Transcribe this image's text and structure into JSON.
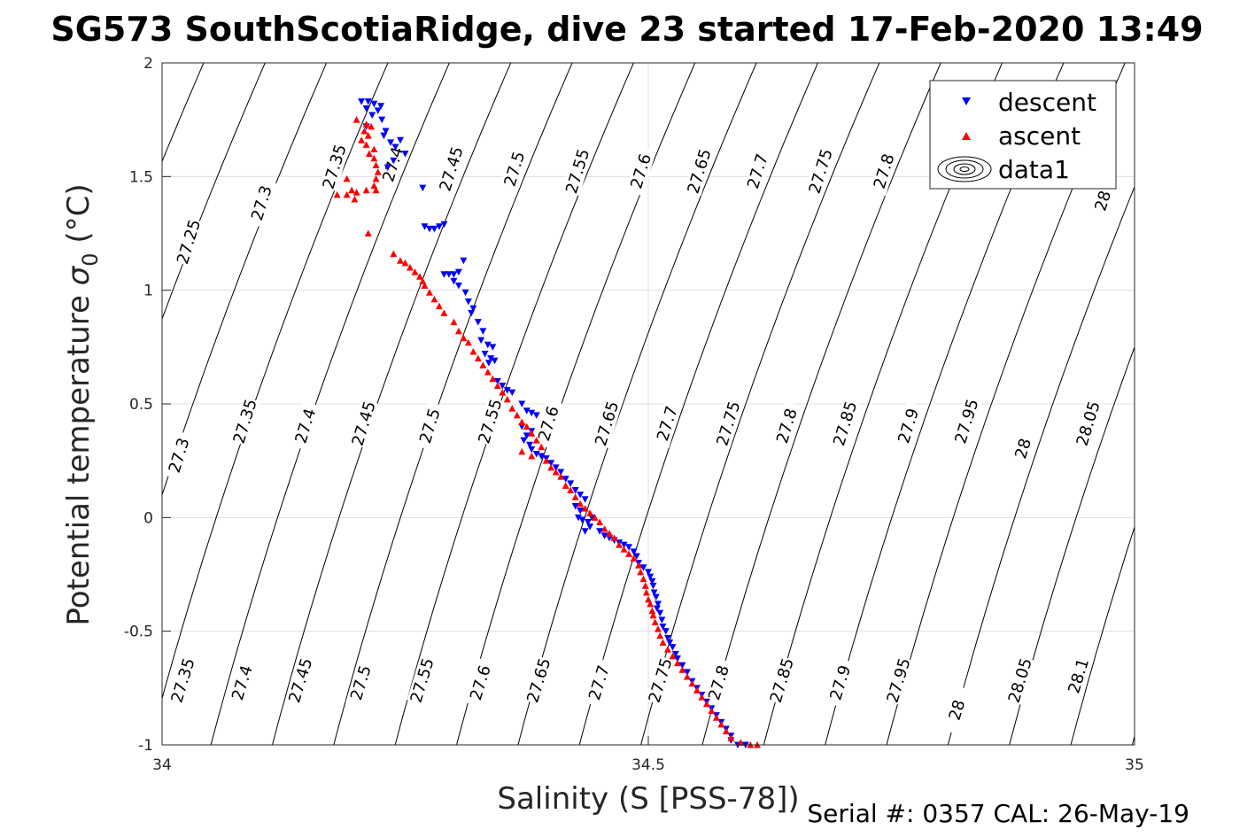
{
  "title": "SG573 SouthScotiaRidge, dive 23 started 17-Feb-2020 13:49",
  "footer": "Serial #: 0357  CAL: 26-May-19",
  "colors": {
    "descent": "#0000ff",
    "ascent": "#ff0000",
    "contour": "#000000",
    "grid": "#dfdfdf"
  },
  "chart_data": {
    "type": "scatter",
    "xlabel": "Salinity (S [PSS-78])",
    "ylabel_main": "Potential temperature ",
    "ylabel_sigma": "σ",
    "ylabel_sub": "0",
    "ylabel_unit": " (°C)",
    "xlim": [
      34,
      35
    ],
    "ylim": [
      -1,
      2
    ],
    "xticks": [
      34,
      34.5,
      35
    ],
    "xtick_labels": [
      "34",
      "34.5",
      "35"
    ],
    "yticks": [
      -1,
      -0.5,
      0,
      0.5,
      1,
      1.5,
      2
    ],
    "ytick_labels": [
      "-1",
      "-0.5",
      "0",
      "0.5",
      "1",
      "1.5",
      "2"
    ],
    "grid": true,
    "legend_position": "top-right",
    "legend": [
      "descent",
      "ascent",
      "data1"
    ],
    "contour_levels": [
      27.25,
      27.3,
      27.35,
      27.4,
      27.45,
      27.5,
      27.55,
      27.6,
      27.65,
      27.7,
      27.75,
      27.8,
      27.85,
      27.9,
      27.95,
      28,
      28.05,
      28.1
    ],
    "contour_labels": [
      {
        "text": "27.25",
        "s": 34.03,
        "t": 1.21
      },
      {
        "text": "27.3",
        "s": 34.105,
        "t": 1.38
      },
      {
        "text": "27.35",
        "s": 34.18,
        "t": 1.54
      },
      {
        "text": "27.4",
        "s": 34.24,
        "t": 1.55
      },
      {
        "text": "27.45",
        "s": 34.3,
        "t": 1.53
      },
      {
        "text": "27.5",
        "s": 34.365,
        "t": 1.53
      },
      {
        "text": "27.55",
        "s": 34.43,
        "t": 1.52
      },
      {
        "text": "27.6",
        "s": 34.495,
        "t": 1.52
      },
      {
        "text": "27.65",
        "s": 34.555,
        "t": 1.52
      },
      {
        "text": "27.7",
        "s": 34.615,
        "t": 1.52
      },
      {
        "text": "27.75",
        "s": 34.68,
        "t": 1.52
      },
      {
        "text": "27.8",
        "s": 34.745,
        "t": 1.52
      },
      {
        "text": "28",
        "s": 34.97,
        "t": 1.39
      },
      {
        "text": "27.3",
        "s": 34.02,
        "t": 0.27
      },
      {
        "text": "27.35",
        "s": 34.088,
        "t": 0.42
      },
      {
        "text": "27.4",
        "s": 34.15,
        "t": 0.4
      },
      {
        "text": "27.45",
        "s": 34.21,
        "t": 0.41
      },
      {
        "text": "27.5",
        "s": 34.278,
        "t": 0.4
      },
      {
        "text": "27.55",
        "s": 34.34,
        "t": 0.42
      },
      {
        "text": "27.6",
        "s": 34.4,
        "t": 0.41
      },
      {
        "text": "27.65",
        "s": 34.46,
        "t": 0.41
      },
      {
        "text": "27.7",
        "s": 34.522,
        "t": 0.41
      },
      {
        "text": "27.75",
        "s": 34.585,
        "t": 0.41
      },
      {
        "text": "27.8",
        "s": 34.645,
        "t": 0.4
      },
      {
        "text": "27.85",
        "s": 34.705,
        "t": 0.41
      },
      {
        "text": "27.9",
        "s": 34.77,
        "t": 0.4
      },
      {
        "text": "27.95",
        "s": 34.83,
        "t": 0.42
      },
      {
        "text": "28",
        "s": 34.888,
        "t": 0.3
      },
      {
        "text": "28.05",
        "s": 34.955,
        "t": 0.41
      },
      {
        "text": "27.35",
        "s": 34.024,
        "t": -0.72
      },
      {
        "text": "27.4",
        "s": 34.085,
        "t": -0.73
      },
      {
        "text": "27.45",
        "s": 34.145,
        "t": -0.72
      },
      {
        "text": "27.5",
        "s": 34.207,
        "t": -0.73
      },
      {
        "text": "27.55",
        "s": 34.27,
        "t": -0.72
      },
      {
        "text": "27.6",
        "s": 34.33,
        "t": -0.73
      },
      {
        "text": "27.65",
        "s": 34.39,
        "t": -0.72
      },
      {
        "text": "27.7",
        "s": 34.452,
        "t": -0.73
      },
      {
        "text": "27.75",
        "s": 34.515,
        "t": -0.72
      },
      {
        "text": "27.8",
        "s": 34.575,
        "t": -0.73
      },
      {
        "text": "27.85",
        "s": 34.64,
        "t": -0.72
      },
      {
        "text": "27.9",
        "s": 34.7,
        "t": -0.73
      },
      {
        "text": "27.95",
        "s": 34.76,
        "t": -0.72
      },
      {
        "text": "28",
        "s": 34.82,
        "t": -0.85
      },
      {
        "text": "28.05",
        "s": 34.885,
        "t": -0.72
      },
      {
        "text": "28.1",
        "s": 34.945,
        "t": -0.7
      }
    ],
    "series": [
      {
        "name": "descent",
        "marker": "triangle-down",
        "points": [
          [
            34.205,
            1.83
          ],
          [
            34.212,
            1.83
          ],
          [
            34.218,
            1.82
          ],
          [
            34.225,
            1.81
          ],
          [
            34.21,
            1.8
          ],
          [
            34.222,
            1.79
          ],
          [
            34.216,
            1.77
          ],
          [
            34.226,
            1.75
          ],
          [
            34.21,
            1.72
          ],
          [
            34.23,
            1.7
          ],
          [
            34.228,
            1.68
          ],
          [
            34.235,
            1.65
          ],
          [
            34.245,
            1.66
          ],
          [
            34.24,
            1.63
          ],
          [
            34.25,
            1.6
          ],
          [
            34.238,
            1.57
          ],
          [
            34.232,
            1.54
          ],
          [
            34.268,
            1.45
          ],
          [
            34.27,
            1.28
          ],
          [
            34.275,
            1.27
          ],
          [
            34.28,
            1.27
          ],
          [
            34.285,
            1.28
          ],
          [
            34.29,
            1.29
          ],
          [
            34.29,
            1.07
          ],
          [
            34.295,
            1.07
          ],
          [
            34.3,
            1.07
          ],
          [
            34.305,
            1.08
          ],
          [
            34.31,
            1.13
          ],
          [
            34.3,
            1.04
          ],
          [
            34.305,
            1.02
          ],
          [
            34.312,
            0.99
          ],
          [
            34.315,
            0.95
          ],
          [
            34.32,
            0.92
          ],
          [
            34.318,
            0.9
          ],
          [
            34.325,
            0.86
          ],
          [
            34.33,
            0.82
          ],
          [
            34.328,
            0.78
          ],
          [
            34.335,
            0.76
          ],
          [
            34.34,
            0.75
          ],
          [
            34.332,
            0.72
          ],
          [
            34.338,
            0.7
          ],
          [
            34.342,
            0.69
          ],
          [
            34.336,
            0.68
          ],
          [
            34.345,
            0.6
          ],
          [
            34.35,
            0.58
          ],
          [
            34.355,
            0.56
          ],
          [
            34.36,
            0.55
          ],
          [
            34.37,
            0.5
          ],
          [
            34.375,
            0.47
          ],
          [
            34.38,
            0.46
          ],
          [
            34.385,
            0.45
          ],
          [
            34.37,
            0.4
          ],
          [
            34.38,
            0.38
          ],
          [
            34.375,
            0.36
          ],
          [
            34.372,
            0.34
          ],
          [
            34.378,
            0.32
          ],
          [
            34.38,
            0.3
          ],
          [
            34.385,
            0.28
          ],
          [
            34.39,
            0.27
          ],
          [
            34.395,
            0.26
          ],
          [
            34.4,
            0.24
          ],
          [
            34.405,
            0.22
          ],
          [
            34.41,
            0.2
          ],
          [
            34.415,
            0.17
          ],
          [
            34.42,
            0.15
          ],
          [
            34.425,
            0.12
          ],
          [
            34.43,
            0.1
          ],
          [
            34.435,
            0.08
          ],
          [
            34.425,
            0.05
          ],
          [
            34.43,
            0.03
          ],
          [
            34.428,
            0.0
          ],
          [
            34.432,
            -0.01
          ],
          [
            34.438,
            -0.02
          ],
          [
            34.44,
            -0.04
          ],
          [
            34.435,
            -0.06
          ],
          [
            34.442,
            0.0
          ],
          [
            34.45,
            -0.06
          ],
          [
            34.455,
            -0.08
          ],
          [
            34.46,
            -0.09
          ],
          [
            34.465,
            -0.1
          ],
          [
            34.47,
            -0.11
          ],
          [
            34.475,
            -0.12
          ],
          [
            34.48,
            -0.13
          ],
          [
            34.485,
            -0.15
          ],
          [
            34.488,
            -0.17
          ],
          [
            34.49,
            -0.2
          ],
          [
            34.495,
            -0.22
          ],
          [
            34.5,
            -0.24
          ],
          [
            34.502,
            -0.26
          ],
          [
            34.504,
            -0.28
          ],
          [
            34.505,
            -0.3
          ],
          [
            34.506,
            -0.33
          ],
          [
            34.508,
            -0.35
          ],
          [
            34.51,
            -0.38
          ],
          [
            34.509,
            -0.4
          ],
          [
            34.512,
            -0.42
          ],
          [
            34.514,
            -0.45
          ],
          [
            34.515,
            -0.48
          ],
          [
            34.518,
            -0.5
          ],
          [
            34.52,
            -0.53
          ],
          [
            34.522,
            -0.55
          ],
          [
            34.525,
            -0.57
          ],
          [
            34.528,
            -0.6
          ],
          [
            34.53,
            -0.62
          ],
          [
            34.535,
            -0.65
          ],
          [
            34.54,
            -0.68
          ],
          [
            34.545,
            -0.72
          ],
          [
            34.55,
            -0.75
          ],
          [
            34.555,
            -0.78
          ],
          [
            34.56,
            -0.81
          ],
          [
            34.565,
            -0.84
          ],
          [
            34.57,
            -0.87
          ],
          [
            34.575,
            -0.9
          ],
          [
            34.58,
            -0.93
          ],
          [
            34.585,
            -0.96
          ],
          [
            34.585,
            -0.98
          ],
          [
            34.592,
            -1.0
          ],
          [
            34.6,
            -1.0
          ]
        ]
      },
      {
        "name": "ascent",
        "marker": "triangle-up",
        "points": [
          [
            34.2,
            1.75
          ],
          [
            34.21,
            1.73
          ],
          [
            34.215,
            1.72
          ],
          [
            34.208,
            1.7
          ],
          [
            34.212,
            1.68
          ],
          [
            34.205,
            1.66
          ],
          [
            34.21,
            1.64
          ],
          [
            34.218,
            1.62
          ],
          [
            34.213,
            1.6
          ],
          [
            34.218,
            1.58
          ],
          [
            34.22,
            1.55
          ],
          [
            34.222,
            1.52
          ],
          [
            34.22,
            1.49
          ],
          [
            34.218,
            1.46
          ],
          [
            34.21,
            1.44
          ],
          [
            34.2,
            1.43
          ],
          [
            34.19,
            1.42
          ],
          [
            34.18,
            1.42
          ],
          [
            34.195,
            1.44
          ],
          [
            34.19,
            1.49
          ],
          [
            34.22,
            1.44
          ],
          [
            34.198,
            1.4
          ],
          [
            34.212,
            1.25
          ],
          [
            34.238,
            1.16
          ],
          [
            34.245,
            1.13
          ],
          [
            34.25,
            1.12
          ],
          [
            34.255,
            1.1
          ],
          [
            34.26,
            1.08
          ],
          [
            34.265,
            1.06
          ],
          [
            34.268,
            1.04
          ],
          [
            34.27,
            1.02
          ],
          [
            34.275,
            0.99
          ],
          [
            34.28,
            0.96
          ],
          [
            34.285,
            0.93
          ],
          [
            34.29,
            0.9
          ],
          [
            34.3,
            0.86
          ],
          [
            34.305,
            0.82
          ],
          [
            34.31,
            0.79
          ],
          [
            34.315,
            0.77
          ],
          [
            34.32,
            0.73
          ],
          [
            34.325,
            0.7
          ],
          [
            34.33,
            0.67
          ],
          [
            34.335,
            0.64
          ],
          [
            34.34,
            0.61
          ],
          [
            34.345,
            0.58
          ],
          [
            34.35,
            0.55
          ],
          [
            34.355,
            0.52
          ],
          [
            34.36,
            0.48
          ],
          [
            34.365,
            0.45
          ],
          [
            34.37,
            0.42
          ],
          [
            34.375,
            0.4
          ],
          [
            34.38,
            0.37
          ],
          [
            34.385,
            0.34
          ],
          [
            34.39,
            0.31
          ],
          [
            34.37,
            0.29
          ],
          [
            34.38,
            0.27
          ],
          [
            34.395,
            0.25
          ],
          [
            34.4,
            0.22
          ],
          [
            34.405,
            0.2
          ],
          [
            34.41,
            0.18
          ],
          [
            34.415,
            0.14
          ],
          [
            34.42,
            0.12
          ],
          [
            34.425,
            0.09
          ],
          [
            34.43,
            0.06
          ],
          [
            34.435,
            0.04
          ],
          [
            34.44,
            0.02
          ],
          [
            34.445,
            0.0
          ],
          [
            34.45,
            -0.02
          ],
          [
            34.455,
            -0.05
          ],
          [
            34.46,
            -0.07
          ],
          [
            34.465,
            -0.09
          ],
          [
            34.47,
            -0.12
          ],
          [
            34.475,
            -0.14
          ],
          [
            34.48,
            -0.16
          ],
          [
            34.485,
            -0.18
          ],
          [
            34.49,
            -0.21
          ],
          [
            34.492,
            -0.24
          ],
          [
            34.495,
            -0.27
          ],
          [
            34.497,
            -0.3
          ],
          [
            34.498,
            -0.33
          ],
          [
            34.5,
            -0.36
          ],
          [
            34.502,
            -0.38
          ],
          [
            34.504,
            -0.41
          ],
          [
            34.505,
            -0.43
          ],
          [
            34.507,
            -0.46
          ],
          [
            34.51,
            -0.49
          ],
          [
            34.512,
            -0.52
          ],
          [
            34.515,
            -0.55
          ],
          [
            34.52,
            -0.58
          ],
          [
            34.525,
            -0.61
          ],
          [
            34.53,
            -0.64
          ],
          [
            34.535,
            -0.67
          ],
          [
            34.54,
            -0.7
          ],
          [
            34.545,
            -0.73
          ],
          [
            34.55,
            -0.76
          ],
          [
            34.555,
            -0.79
          ],
          [
            34.56,
            -0.82
          ],
          [
            34.565,
            -0.85
          ],
          [
            34.57,
            -0.88
          ],
          [
            34.575,
            -0.91
          ],
          [
            34.58,
            -0.94
          ],
          [
            34.585,
            -0.97
          ],
          [
            34.595,
            -0.99
          ],
          [
            34.605,
            -1.0
          ],
          [
            34.612,
            -1.0
          ]
        ]
      }
    ]
  }
}
